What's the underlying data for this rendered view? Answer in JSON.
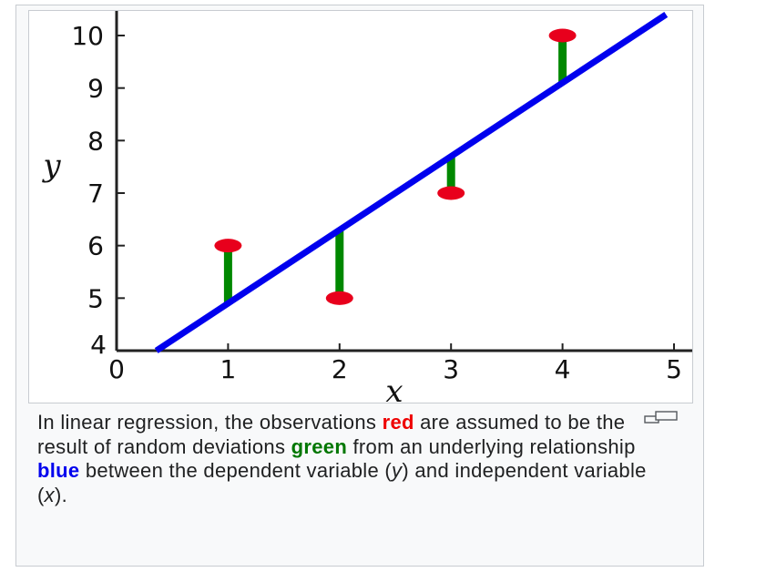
{
  "chart_data": {
    "type": "scatter",
    "xlabel": "x",
    "ylabel": "y",
    "xlim": [
      0,
      5
    ],
    "ylim": [
      4,
      10.4
    ],
    "x_ticks": [
      "0",
      "1",
      "2",
      "3",
      "4",
      "5"
    ],
    "y_ticks": [
      "4",
      "5",
      "6",
      "7",
      "8",
      "9",
      "10"
    ],
    "observations": [
      {
        "x": 1,
        "y": 6
      },
      {
        "x": 2,
        "y": 5
      },
      {
        "x": 3,
        "y": 7
      },
      {
        "x": 4,
        "y": 10
      }
    ],
    "regression_line": {
      "slope": 1.4,
      "intercept": 3.5
    },
    "colors": {
      "observations": "#e8001c",
      "deviations": "#008800",
      "regression": "#0000ee"
    }
  },
  "caption": {
    "text_1": "In linear regression, the observations ",
    "red_word": "red",
    "text_2": " are assumed to be the result of random deviations ",
    "green_word": "green",
    "text_3": " from an underlying relationship ",
    "blue_word": "blue",
    "text_4": " between the dependent variable (",
    "var_y": "y",
    "text_5": ") and independent variable (",
    "var_x": "x",
    "text_6": ")."
  },
  "enlarge_icon": "magnify-clip-icon"
}
